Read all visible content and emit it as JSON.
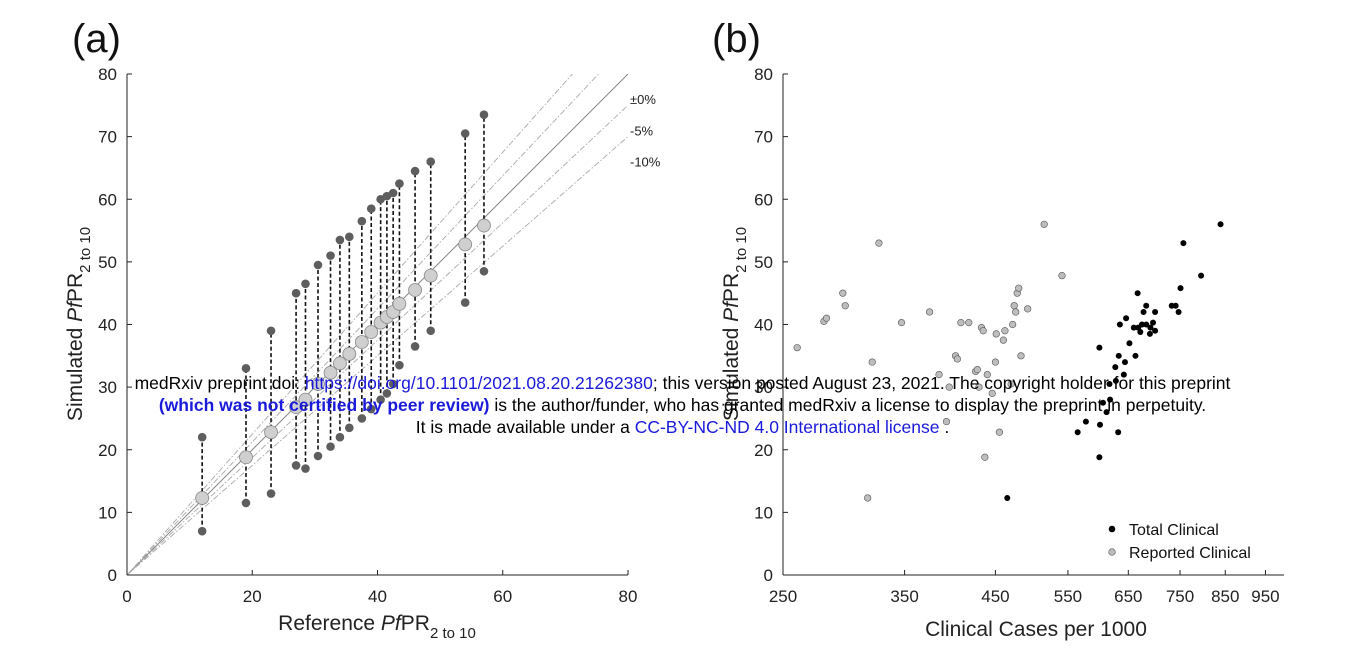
{
  "figure": {
    "panels": [
      "(a)",
      "(b)"
    ],
    "guide_labels": [
      "±0%",
      "-5%",
      "-10%"
    ],
    "notice": {
      "prefix": "medRxiv preprint doi: ",
      "doi": "https://doi.org/10.1101/2021.08.20.21262380",
      "middle": "; this version posted August 23, 2021. The copyright holder for this preprint",
      "bold": "(which was not certified by peer review)",
      "line2_rest": " is the author/funder, who has granted medRxiv a license to display the preprint in perpetuity.",
      "line3_prefix": "It is made available under a ",
      "license": "CC-BY-NC-ND 4.0 International license",
      "line3_suffix": " ."
    }
  },
  "chart_data": [
    {
      "type": "scatter",
      "panel": "(a)",
      "title": "",
      "xlabel": {
        "pre": "Reference ",
        "it": "Pf",
        "mid": "PR",
        "sub": "2 to 10"
      },
      "ylabel": {
        "pre": "Simulated ",
        "it": "Pf",
        "mid": "PR",
        "sub": "2 to 10"
      },
      "xlim": [
        0,
        80
      ],
      "ylim": [
        0,
        80
      ],
      "xticks": [
        0,
        20,
        40,
        60,
        80
      ],
      "yticks": [
        0,
        10,
        20,
        30,
        40,
        50,
        60,
        70,
        80
      ],
      "grid": false,
      "guide_lines": [
        {
          "label": "±0%",
          "offset": 0
        },
        {
          "label": "-5%",
          "offset": -5
        },
        {
          "label": "-10%",
          "offset": -10
        },
        {
          "label": "",
          "offset": 5
        },
        {
          "label": "",
          "offset": 10
        }
      ],
      "colors": {
        "range": "#5e5e5e",
        "median": "#cfcfcf",
        "median_edge": "#8a8a8a"
      },
      "ranges": [
        {
          "x": 12,
          "min": 7,
          "max": 22,
          "median": 12.3
        },
        {
          "x": 19,
          "min": 11.5,
          "max": 33,
          "median": 18.8
        },
        {
          "x": 23,
          "min": 13,
          "max": 39,
          "median": 22.8
        },
        {
          "x": 27,
          "min": 17.5,
          "max": 45,
          "median": 26.8
        },
        {
          "x": 28.5,
          "min": 17,
          "max": 46.5,
          "median": 28
        },
        {
          "x": 30.5,
          "min": 19,
          "max": 49.5,
          "median": 30.5
        },
        {
          "x": 32.5,
          "min": 20.5,
          "max": 51,
          "median": 32.3
        },
        {
          "x": 34,
          "min": 22,
          "max": 53.5,
          "median": 33.8
        },
        {
          "x": 35.5,
          "min": 23.5,
          "max": 54,
          "median": 35.3
        },
        {
          "x": 37.5,
          "min": 25,
          "max": 56.5,
          "median": 37.2
        },
        {
          "x": 39,
          "min": 26.5,
          "max": 58.5,
          "median": 38.8
        },
        {
          "x": 40.5,
          "min": 28,
          "max": 60,
          "median": 40.3
        },
        {
          "x": 41.5,
          "min": 29,
          "max": 60.5,
          "median": 41.2
        },
        {
          "x": 42.5,
          "min": 30.5,
          "max": 61,
          "median": 42
        },
        {
          "x": 43.5,
          "min": 33.5,
          "max": 62.5,
          "median": 43.3
        },
        {
          "x": 46,
          "min": 36.5,
          "max": 64.5,
          "median": 45.5
        },
        {
          "x": 48.5,
          "min": 39,
          "max": 66,
          "median": 47.8
        },
        {
          "x": 54,
          "min": 43.5,
          "max": 70.5,
          "median": 52.8
        },
        {
          "x": 57,
          "min": 48.5,
          "max": 73.5,
          "median": 55.8
        }
      ]
    },
    {
      "type": "scatter",
      "panel": "(b)",
      "title": "",
      "xlabel": "Clinical Cases per 1000",
      "ylabel": {
        "pre": "Simulated ",
        "it": "Pf",
        "mid": "PR",
        "sub": "2 to 10"
      },
      "xlim": [
        250,
        1000
      ],
      "ylim": [
        0,
        80
      ],
      "xscale": "log",
      "xticks": [
        250,
        350,
        450,
        550,
        650,
        750,
        850,
        950
      ],
      "yticks": [
        0,
        10,
        20,
        30,
        40,
        50,
        60,
        70,
        80
      ],
      "grid": false,
      "legend_position": "bottom-right",
      "series": [
        {
          "name": "Total Clinical",
          "color": "#000000",
          "points": [
            [
              465,
              12.3
            ],
            [
              600,
              18.8
            ],
            [
              632,
              22.8
            ],
            [
              565,
              22.8
            ],
            [
              578,
              24.5
            ],
            [
              601,
              24
            ],
            [
              612,
              26
            ],
            [
              618,
              28
            ],
            [
              606,
              27.5
            ],
            [
              617,
              30.5
            ],
            [
              628,
              31
            ],
            [
              642,
              32
            ],
            [
              627,
              33.2
            ],
            [
              644,
              34
            ],
            [
              633,
              35
            ],
            [
              663,
              35
            ],
            [
              652,
              37
            ],
            [
              600,
              36.3
            ],
            [
              635,
              40
            ],
            [
              646,
              41
            ],
            [
              660,
              39.5
            ],
            [
              675,
              40
            ],
            [
              683,
              40
            ],
            [
              691,
              39.5
            ],
            [
              700,
              39
            ],
            [
              690,
              38.5
            ],
            [
              672,
              38.8
            ],
            [
              668,
              39.5
            ],
            [
              678,
              42
            ],
            [
              696,
              40.3
            ],
            [
              667,
              45
            ],
            [
              683,
              43
            ],
            [
              700,
              42
            ],
            [
              741,
              43
            ],
            [
              733,
              43
            ],
            [
              747,
              42
            ],
            [
              751,
              45.8
            ],
            [
              757,
              53
            ],
            [
              795,
              47.8
            ],
            [
              839,
              56
            ]
          ]
        },
        {
          "name": "Reported Clinical",
          "color": "#bdbdbd",
          "points": [
            [
              260,
              36.3
            ],
            [
              280,
              40.5
            ],
            [
              282,
              41
            ],
            [
              295,
              45
            ],
            [
              297,
              43
            ],
            [
              316,
              12.3
            ],
            [
              320,
              34
            ],
            [
              326,
              53
            ],
            [
              347,
              40.3
            ],
            [
              375,
              42
            ],
            [
              385,
              32
            ],
            [
              393,
              24.5
            ],
            [
              396,
              30
            ],
            [
              403,
              35
            ],
            [
              405,
              34.5
            ],
            [
              409,
              40.3
            ],
            [
              418,
              40.3
            ],
            [
              426,
              32.5
            ],
            [
              428,
              32.8
            ],
            [
              430,
              30
            ],
            [
              433,
              39.5
            ],
            [
              435,
              39
            ],
            [
              437,
              18.8
            ],
            [
              440,
              32
            ],
            [
              446,
              29
            ],
            [
              450,
              34
            ],
            [
              451,
              38.5
            ],
            [
              455,
              22.8
            ],
            [
              460,
              37.5
            ],
            [
              462,
              39
            ],
            [
              470,
              30.5
            ],
            [
              472,
              40
            ],
            [
              474,
              43
            ],
            [
              476,
              42
            ],
            [
              478,
              45
            ],
            [
              480,
              45.8
            ],
            [
              483,
              35
            ],
            [
              492,
              42.5
            ],
            [
              515,
              56
            ],
            [
              541,
              47.8
            ]
          ]
        }
      ]
    }
  ]
}
